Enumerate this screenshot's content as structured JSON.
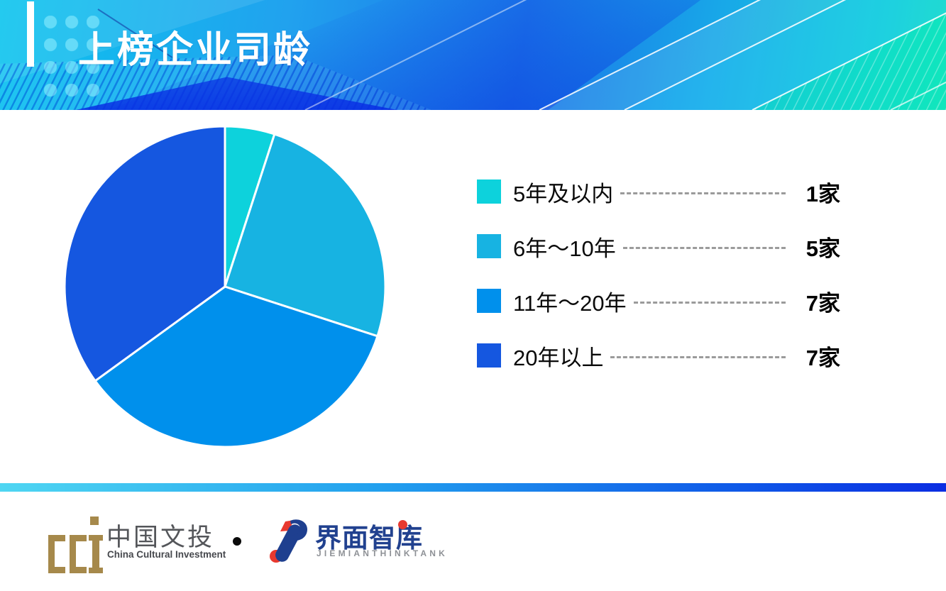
{
  "header": {
    "title": "上榜企业司龄"
  },
  "chart_data": {
    "type": "pie",
    "title": "上榜企业司龄",
    "unit": "家",
    "categories": [
      "5年及以内",
      "6年～10年",
      "11年～20年",
      "20年以上"
    ],
    "values": [
      1,
      5,
      7,
      7
    ],
    "value_labels": [
      "1家",
      "5家",
      "7家",
      "7家"
    ],
    "percentages": [
      5,
      25,
      35,
      35
    ],
    "total": 20,
    "colors": [
      "#0dd2dc",
      "#17b3e2",
      "#0090ec",
      "#1557e0"
    ],
    "slice_border_color": "#ffffff",
    "start_angle_deg": 0,
    "direction": "clockwise",
    "legend_position": "right"
  },
  "legend_style": {
    "leader_color": "#9b9b9b",
    "label_color": "#0a0a0a",
    "value_color": "#000000"
  },
  "footer": {
    "cci_logo": {
      "icon": "cci-brackets-column-logo",
      "brand_cn": "中国文投",
      "brand_en": "China Cultural Investment",
      "mark_color": "#a6894b"
    },
    "separator_dot": "•",
    "jiemian_logo": {
      "icon": "jiemian-swoosh-logo",
      "brand_cn": "界面智库",
      "brand_en": "JIEMIANTHINKTANK",
      "mark_navy": "#21418f",
      "mark_red": "#e8392f"
    }
  },
  "theme": {
    "header_gradient": [
      "#0cc4ee",
      "#1b74e8",
      "#12ddc0"
    ],
    "divider_gradient": [
      "#4fd6f2",
      "#0b2de2"
    ],
    "background": "#ffffff"
  }
}
